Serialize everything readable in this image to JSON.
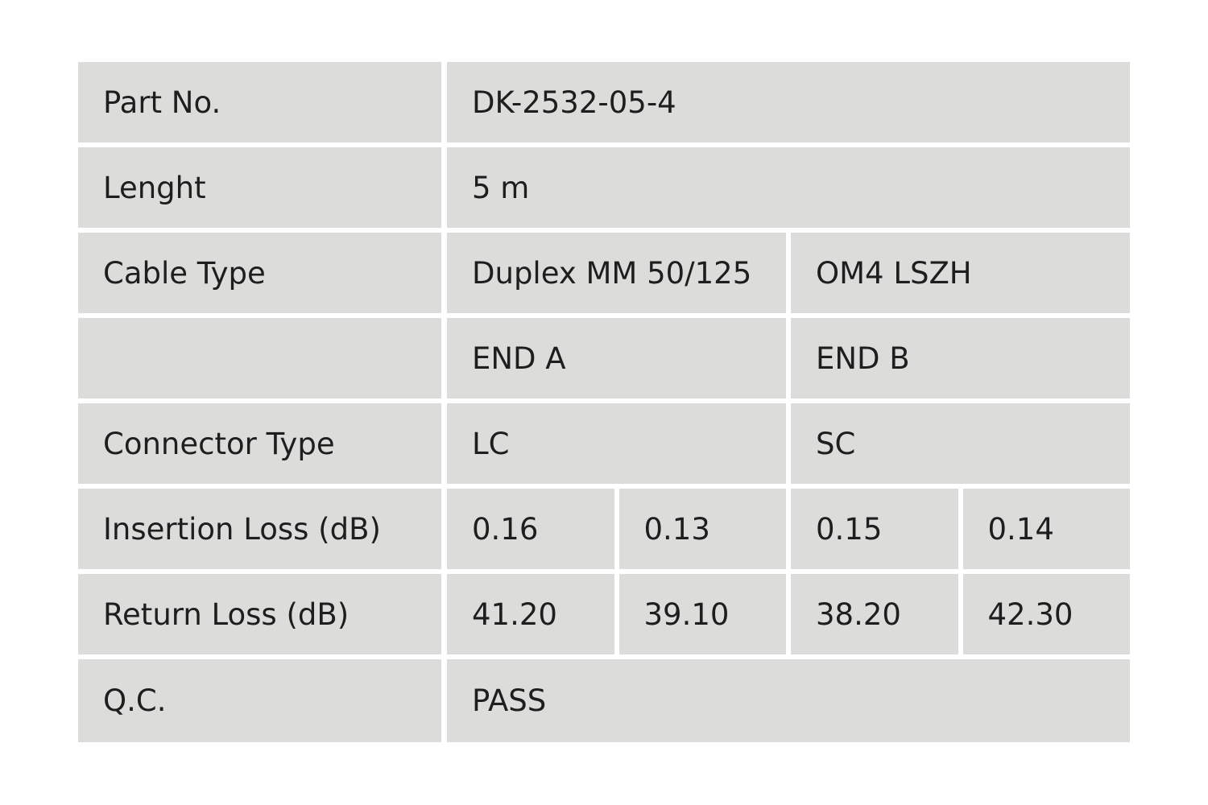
{
  "table": {
    "rows": [
      {
        "label": "Part No.",
        "cells": [
          "DK-2532-05-4"
        ]
      },
      {
        "label": "Lenght",
        "cells": [
          "5 m"
        ]
      },
      {
        "label": "Cable Type",
        "cells": [
          "Duplex MM 50/125",
          "OM4 LSZH"
        ]
      },
      {
        "cells": [
          "END A",
          "END B"
        ]
      },
      {
        "label": "Connector Type",
        "cells": [
          "LC",
          "SC"
        ]
      },
      {
        "label": "Insertion Loss (dB)",
        "cells": [
          "0.16",
          "0.13",
          "0.15",
          "0.14"
        ]
      },
      {
        "label": "Return Loss (dB)",
        "cells": [
          "41.20",
          "39.10",
          "38.20",
          "42.30"
        ]
      },
      {
        "label": "Q.C.",
        "cells": [
          "PASS"
        ]
      }
    ]
  }
}
